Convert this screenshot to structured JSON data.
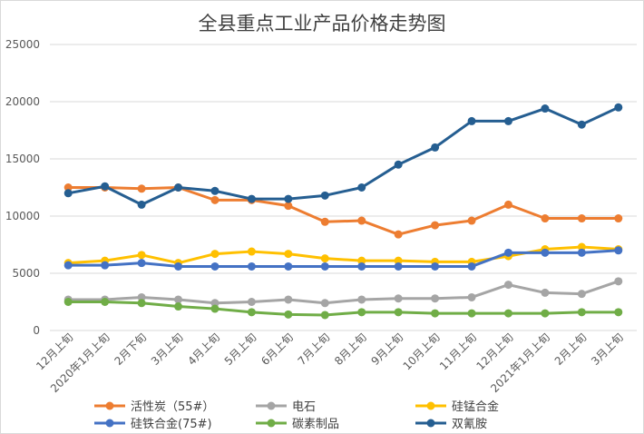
{
  "chart_data": {
    "type": "line",
    "title": "全县重点工业产品价格走势图",
    "xlabel": "",
    "ylabel": "",
    "ylim": [
      0,
      25000
    ],
    "yticks": [
      0,
      5000,
      10000,
      15000,
      20000,
      25000
    ],
    "grid": true,
    "legend_position": "bottom",
    "categories": [
      "12月上旬",
      "2020年1月上旬",
      "2月下旬",
      "3月上旬",
      "4月上旬",
      "5月上旬",
      "6月上旬",
      "7月上旬",
      "8月上旬",
      "9月上旬",
      "10月上旬",
      "11月上旬",
      "12月上旬",
      "2021年1月上旬",
      "2月上旬",
      "3月上旬"
    ],
    "series": [
      {
        "name": "活性炭（55#）",
        "color": "#ED7D31",
        "values": [
          12500,
          12500,
          12400,
          12500,
          11400,
          11400,
          10900,
          9500,
          9600,
          8400,
          9200,
          9600,
          11000,
          9800,
          9800,
          9800
        ]
      },
      {
        "name": "电石",
        "color": "#A5A5A5",
        "values": [
          2700,
          2700,
          2900,
          2700,
          2400,
          2500,
          2700,
          2400,
          2700,
          2800,
          2800,
          2900,
          4000,
          3300,
          3200,
          4300
        ]
      },
      {
        "name": "硅锰合金",
        "color": "#FFC000",
        "values": [
          5900,
          6100,
          6600,
          5900,
          6700,
          6900,
          6700,
          6300,
          6100,
          6100,
          6000,
          6000,
          6500,
          7100,
          7300,
          7100
        ]
      },
      {
        "name": "硅铁合金(75#)",
        "color": "#4472C4",
        "values": [
          5700,
          5700,
          5900,
          5600,
          5600,
          5600,
          5600,
          5600,
          5600,
          5600,
          5600,
          5600,
          6800,
          6800,
          6800,
          7000
        ]
      },
      {
        "name": "碳素制品",
        "color": "#70AD47",
        "values": [
          2500,
          2500,
          2400,
          2100,
          1900,
          1600,
          1400,
          1350,
          1600,
          1600,
          1500,
          1500,
          1500,
          1500,
          1600,
          1600
        ]
      },
      {
        "name": "双氰胺",
        "color": "#255E91",
        "values": [
          12000,
          12600,
          11000,
          12500,
          12200,
          11500,
          11500,
          11800,
          12500,
          14500,
          16000,
          18300,
          18300,
          19400,
          18000,
          19500
        ]
      }
    ]
  }
}
